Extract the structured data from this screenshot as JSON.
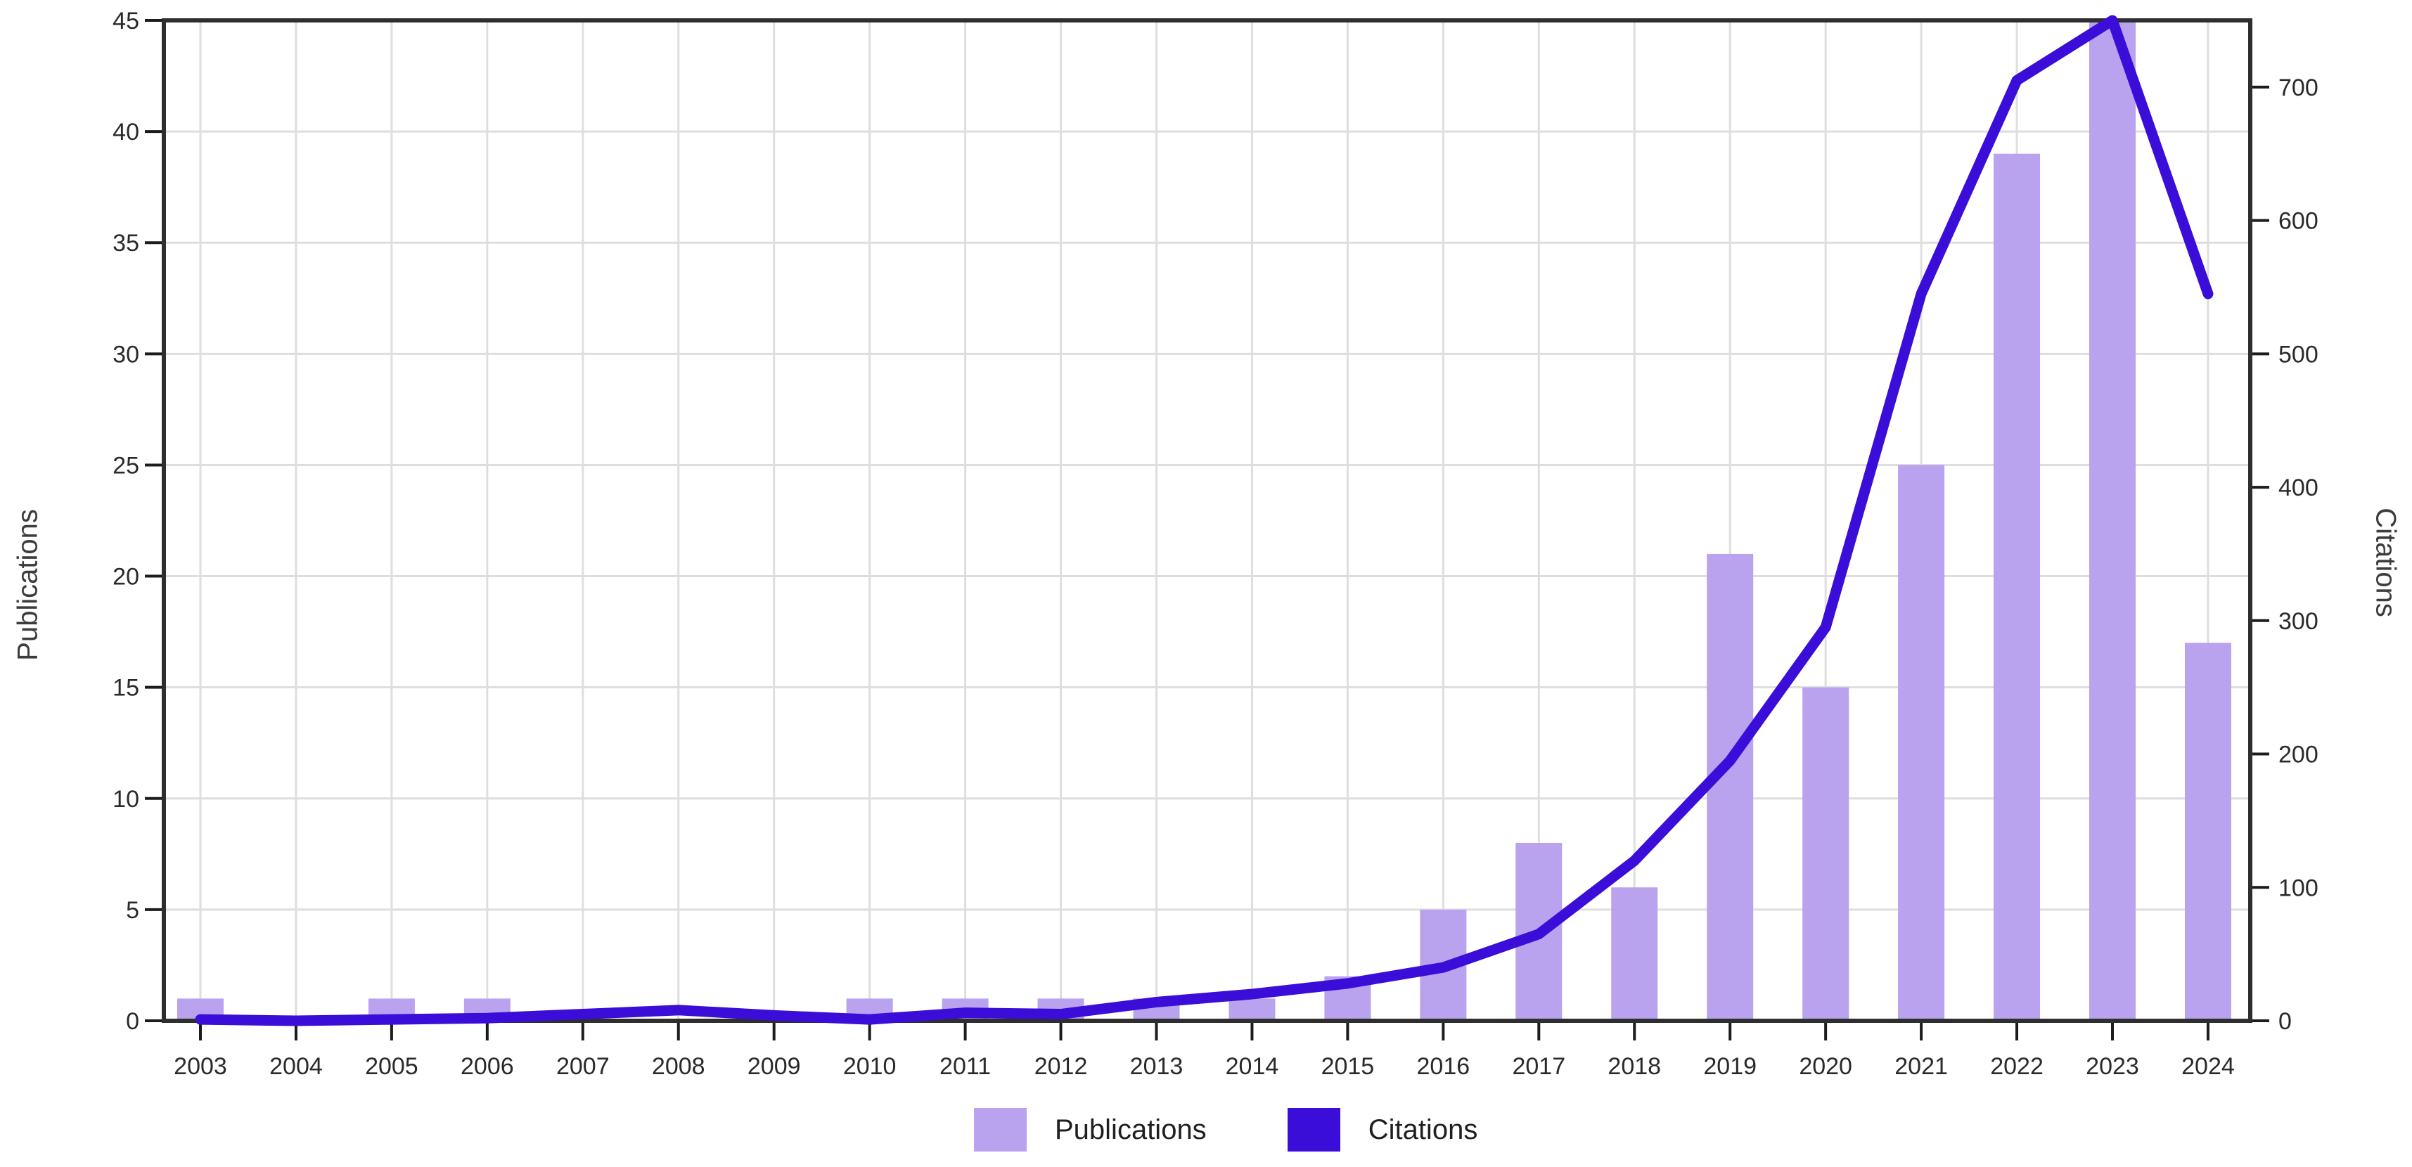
{
  "chart_data": {
    "type": "bar",
    "subtype": "dual-axis bar + line",
    "title": "",
    "categories": [
      "2003",
      "2004",
      "2005",
      "2006",
      "2007",
      "2008",
      "2009",
      "2010",
      "2011",
      "2012",
      "2013",
      "2014",
      "2015",
      "2016",
      "2017",
      "2018",
      "2019",
      "2020",
      "2021",
      "2022",
      "2023",
      "2024"
    ],
    "series": [
      {
        "name": "Publications",
        "type": "bar",
        "axis": "left",
        "color": "#b9a2ee",
        "values": [
          1,
          0,
          1,
          1,
          0,
          0,
          0,
          1,
          1,
          1,
          1,
          1,
          2,
          5,
          8,
          6,
          21,
          15,
          25,
          39,
          45,
          17
        ]
      },
      {
        "name": "Citations",
        "type": "line",
        "axis": "right",
        "color": "#3a0ed8",
        "values": [
          1,
          0,
          1,
          2,
          5,
          8,
          4,
          1,
          6,
          5,
          14,
          20,
          28,
          40,
          65,
          120,
          195,
          295,
          545,
          705,
          750,
          545
        ]
      }
    ],
    "left_axis": {
      "label": "Publications",
      "min": 0,
      "max": 45,
      "ticks": [
        0,
        5,
        10,
        15,
        20,
        25,
        30,
        35,
        40,
        45
      ]
    },
    "right_axis": {
      "label": "Citations",
      "min": 0,
      "max": 750,
      "ticks": [
        0,
        100,
        200,
        300,
        400,
        500,
        600,
        700
      ]
    },
    "x_axis": {
      "label": ""
    },
    "legend": {
      "position": "bottom",
      "items": [
        {
          "label": "Publications",
          "color": "#b9a2ee"
        },
        {
          "label": "Citations",
          "color": "#3a0ed8"
        }
      ]
    },
    "grid": true,
    "background": "#ffffff"
  },
  "styles": {
    "grid_color": "#dedede",
    "spine_color": "#2e2e2e",
    "tick_color": "#1c1c1c",
    "tick_label_color": "#2a2a2a"
  }
}
